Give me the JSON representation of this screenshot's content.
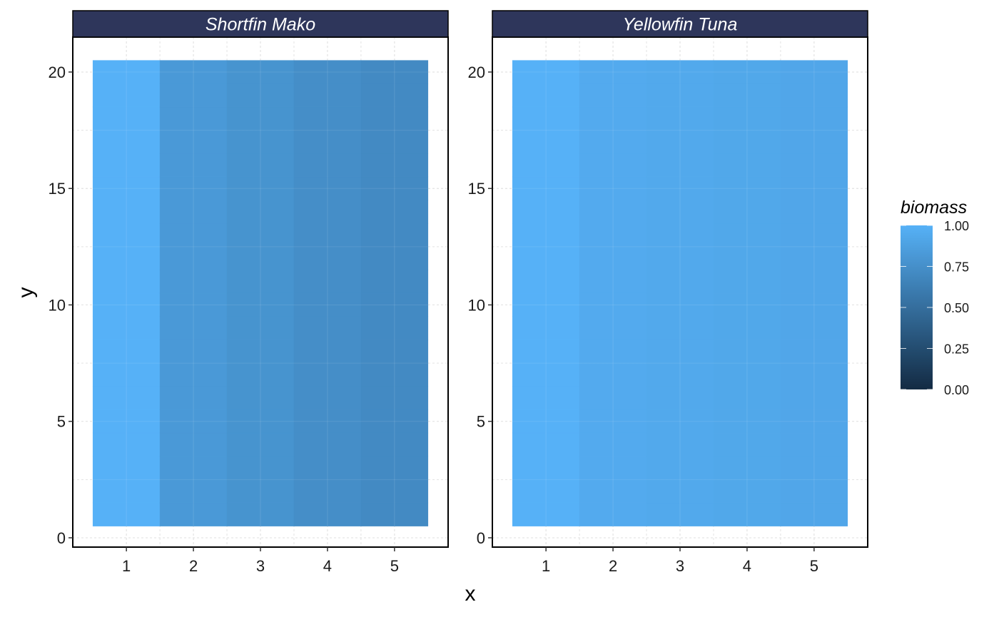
{
  "chart_data": {
    "type": "heatmap",
    "xlabel": "x",
    "ylabel": "y",
    "x_ticks": [
      1,
      2,
      3,
      4,
      5
    ],
    "y_ticks": [
      0,
      5,
      10,
      15,
      20
    ],
    "xlim": [
      0.2,
      5.8
    ],
    "ylim": [
      -0.4,
      21.5
    ],
    "grid": true,
    "x_values": [
      1,
      2,
      3,
      4,
      5
    ],
    "y_range": [
      1,
      20
    ],
    "legend": {
      "title": "biomass",
      "position": "right",
      "ticks": [
        "0.00",
        "0.25",
        "0.50",
        "0.75",
        "1.00"
      ],
      "tick_values": [
        0,
        0.25,
        0.5,
        0.75,
        1
      ],
      "low_color": "#132B43",
      "high_color": "#56B1F7"
    },
    "panels": [
      {
        "title": "Shortfin Mako",
        "biomass_by_x": [
          1.0,
          0.82,
          0.78,
          0.74,
          0.71
        ]
      },
      {
        "title": "Yellowfin Tuna",
        "biomass_by_x": [
          1.0,
          0.95,
          0.94,
          0.93,
          0.92
        ]
      }
    ],
    "colors": {
      "strip_fill": "#2E365B",
      "panel_border": "#000000",
      "grid": "#e3e3e3"
    }
  }
}
